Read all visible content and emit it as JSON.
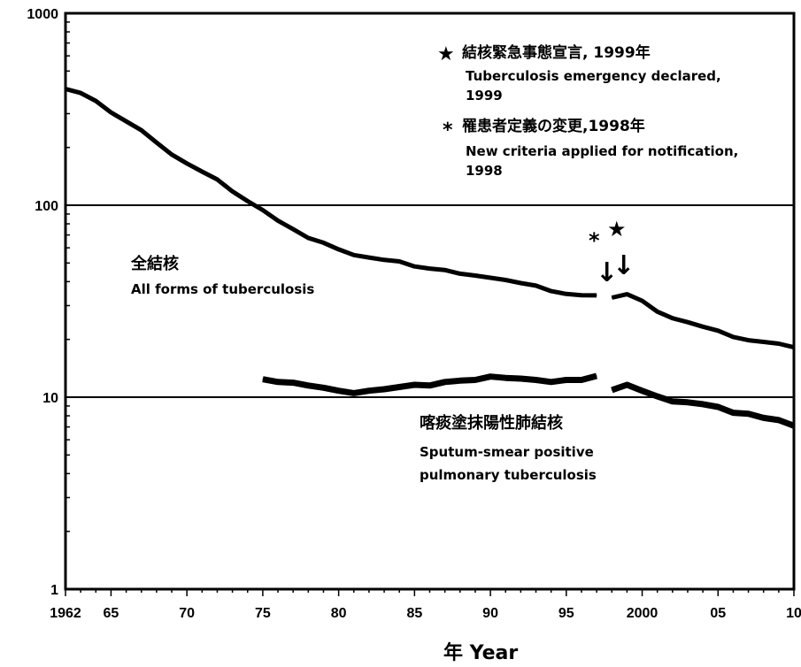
{
  "chart_data": {
    "type": "line",
    "y_scale": "log",
    "ylim": [
      1,
      1000
    ],
    "xlim": [
      1962,
      2010
    ],
    "xlabel": "年 Year",
    "y_ticks": [
      "1",
      "10",
      "100",
      "1000"
    ],
    "x_ticks": [
      {
        "year": 1962,
        "label": "1962"
      },
      {
        "year": 1965,
        "label": "65"
      },
      {
        "year": 1970,
        "label": "70"
      },
      {
        "year": 1975,
        "label": "75"
      },
      {
        "year": 1980,
        "label": "80"
      },
      {
        "year": 1985,
        "label": "85"
      },
      {
        "year": 1990,
        "label": "90"
      },
      {
        "year": 1995,
        "label": "95"
      },
      {
        "year": 2000,
        "label": "2000"
      },
      {
        "year": 2005,
        "label": "05"
      },
      {
        "year": 2010,
        "label": "10"
      }
    ],
    "series": [
      {
        "name_ja": "全結核",
        "name_en": "All forms of tuberculosis",
        "segments": [
          [
            [
              1962,
              403.2
            ],
            [
              1963,
              384.4
            ],
            [
              1964,
              349.3
            ],
            [
              1965,
              304.5
            ],
            [
              1966,
              273.5
            ],
            [
              1967,
              245.8
            ],
            [
              1968,
              212.0
            ],
            [
              1969,
              183.6
            ],
            [
              1970,
              165.0
            ],
            [
              1971,
              149.6
            ],
            [
              1972,
              136.2
            ],
            [
              1973,
              118.0
            ],
            [
              1974,
              105.0
            ],
            [
              1975,
              94.3
            ],
            [
              1976,
              83.1
            ],
            [
              1977,
              75.0
            ],
            [
              1978,
              67.5
            ],
            [
              1979,
              63.8
            ],
            [
              1980,
              58.9
            ],
            [
              1981,
              55.0
            ],
            [
              1982,
              53.4
            ],
            [
              1983,
              51.9
            ],
            [
              1984,
              51.0
            ],
            [
              1985,
              48.0
            ],
            [
              1986,
              46.8
            ],
            [
              1987,
              46.0
            ],
            [
              1988,
              44.0
            ],
            [
              1989,
              43.0
            ],
            [
              1990,
              41.9
            ],
            [
              1991,
              40.8
            ],
            [
              1992,
              39.3
            ],
            [
              1993,
              38.1
            ],
            [
              1994,
              35.7
            ],
            [
              1995,
              34.5
            ],
            [
              1996,
              34.0
            ],
            [
              1997,
              33.9
            ]
          ],
          [
            [
              1998,
              33.0
            ],
            [
              1999,
              34.4
            ],
            [
              2000,
              31.8
            ],
            [
              2001,
              27.9
            ],
            [
              2002,
              25.8
            ],
            [
              2003,
              24.6
            ],
            [
              2004,
              23.3
            ],
            [
              2005,
              22.2
            ],
            [
              2006,
              20.6
            ],
            [
              2007,
              19.8
            ],
            [
              2008,
              19.4
            ],
            [
              2009,
              19.0
            ],
            [
              2010,
              18.2
            ]
          ]
        ]
      },
      {
        "name_ja": "喀痰塗抹陽性肺結核",
        "name_en": "Sputum-smear positive pulmonary tuberculosis",
        "segments": [
          [
            [
              1975,
              12.4
            ],
            [
              1976,
              12.0
            ],
            [
              1977,
              11.9
            ],
            [
              1978,
              11.5
            ],
            [
              1979,
              11.2
            ],
            [
              1980,
              10.8
            ],
            [
              1981,
              10.5
            ],
            [
              1982,
              10.8
            ],
            [
              1983,
              11.0
            ],
            [
              1984,
              11.3
            ],
            [
              1985,
              11.6
            ],
            [
              1986,
              11.5
            ],
            [
              1987,
              12.0
            ],
            [
              1988,
              12.2
            ],
            [
              1989,
              12.3
            ],
            [
              1990,
              12.8
            ],
            [
              1991,
              12.6
            ],
            [
              1992,
              12.5
            ],
            [
              1993,
              12.3
            ],
            [
              1994,
              12.0
            ],
            [
              1995,
              12.3
            ],
            [
              1996,
              12.3
            ],
            [
              1997,
              12.9
            ]
          ],
          [
            [
              1998,
              10.9
            ],
            [
              1999,
              11.6
            ],
            [
              2000,
              10.8
            ],
            [
              2001,
              10.1
            ],
            [
              2002,
              9.5
            ],
            [
              2003,
              9.4
            ],
            [
              2004,
              9.2
            ],
            [
              2005,
              8.9
            ],
            [
              2006,
              8.3
            ],
            [
              2007,
              8.2
            ],
            [
              2008,
              7.8
            ],
            [
              2009,
              7.6
            ],
            [
              2010,
              7.1
            ]
          ]
        ]
      }
    ],
    "annotations": {
      "star_symbol": "★",
      "asterisk_symbol": "*",
      "arrow_glyph": "↓",
      "legend_star_ja": "結核緊急事態宣言, 1999年",
      "legend_star_en_1": "Tuberculosis emergency declared,",
      "legend_star_en_2": "1999",
      "legend_ast_ja": "罹患者定義の変更,1998年",
      "legend_ast_en_1": "New criteria applied for notification,",
      "legend_ast_en_2": "1998",
      "star_year": 1999,
      "asterisk_year": 1998
    },
    "grid": "horizontal lines at 10 and 100"
  }
}
